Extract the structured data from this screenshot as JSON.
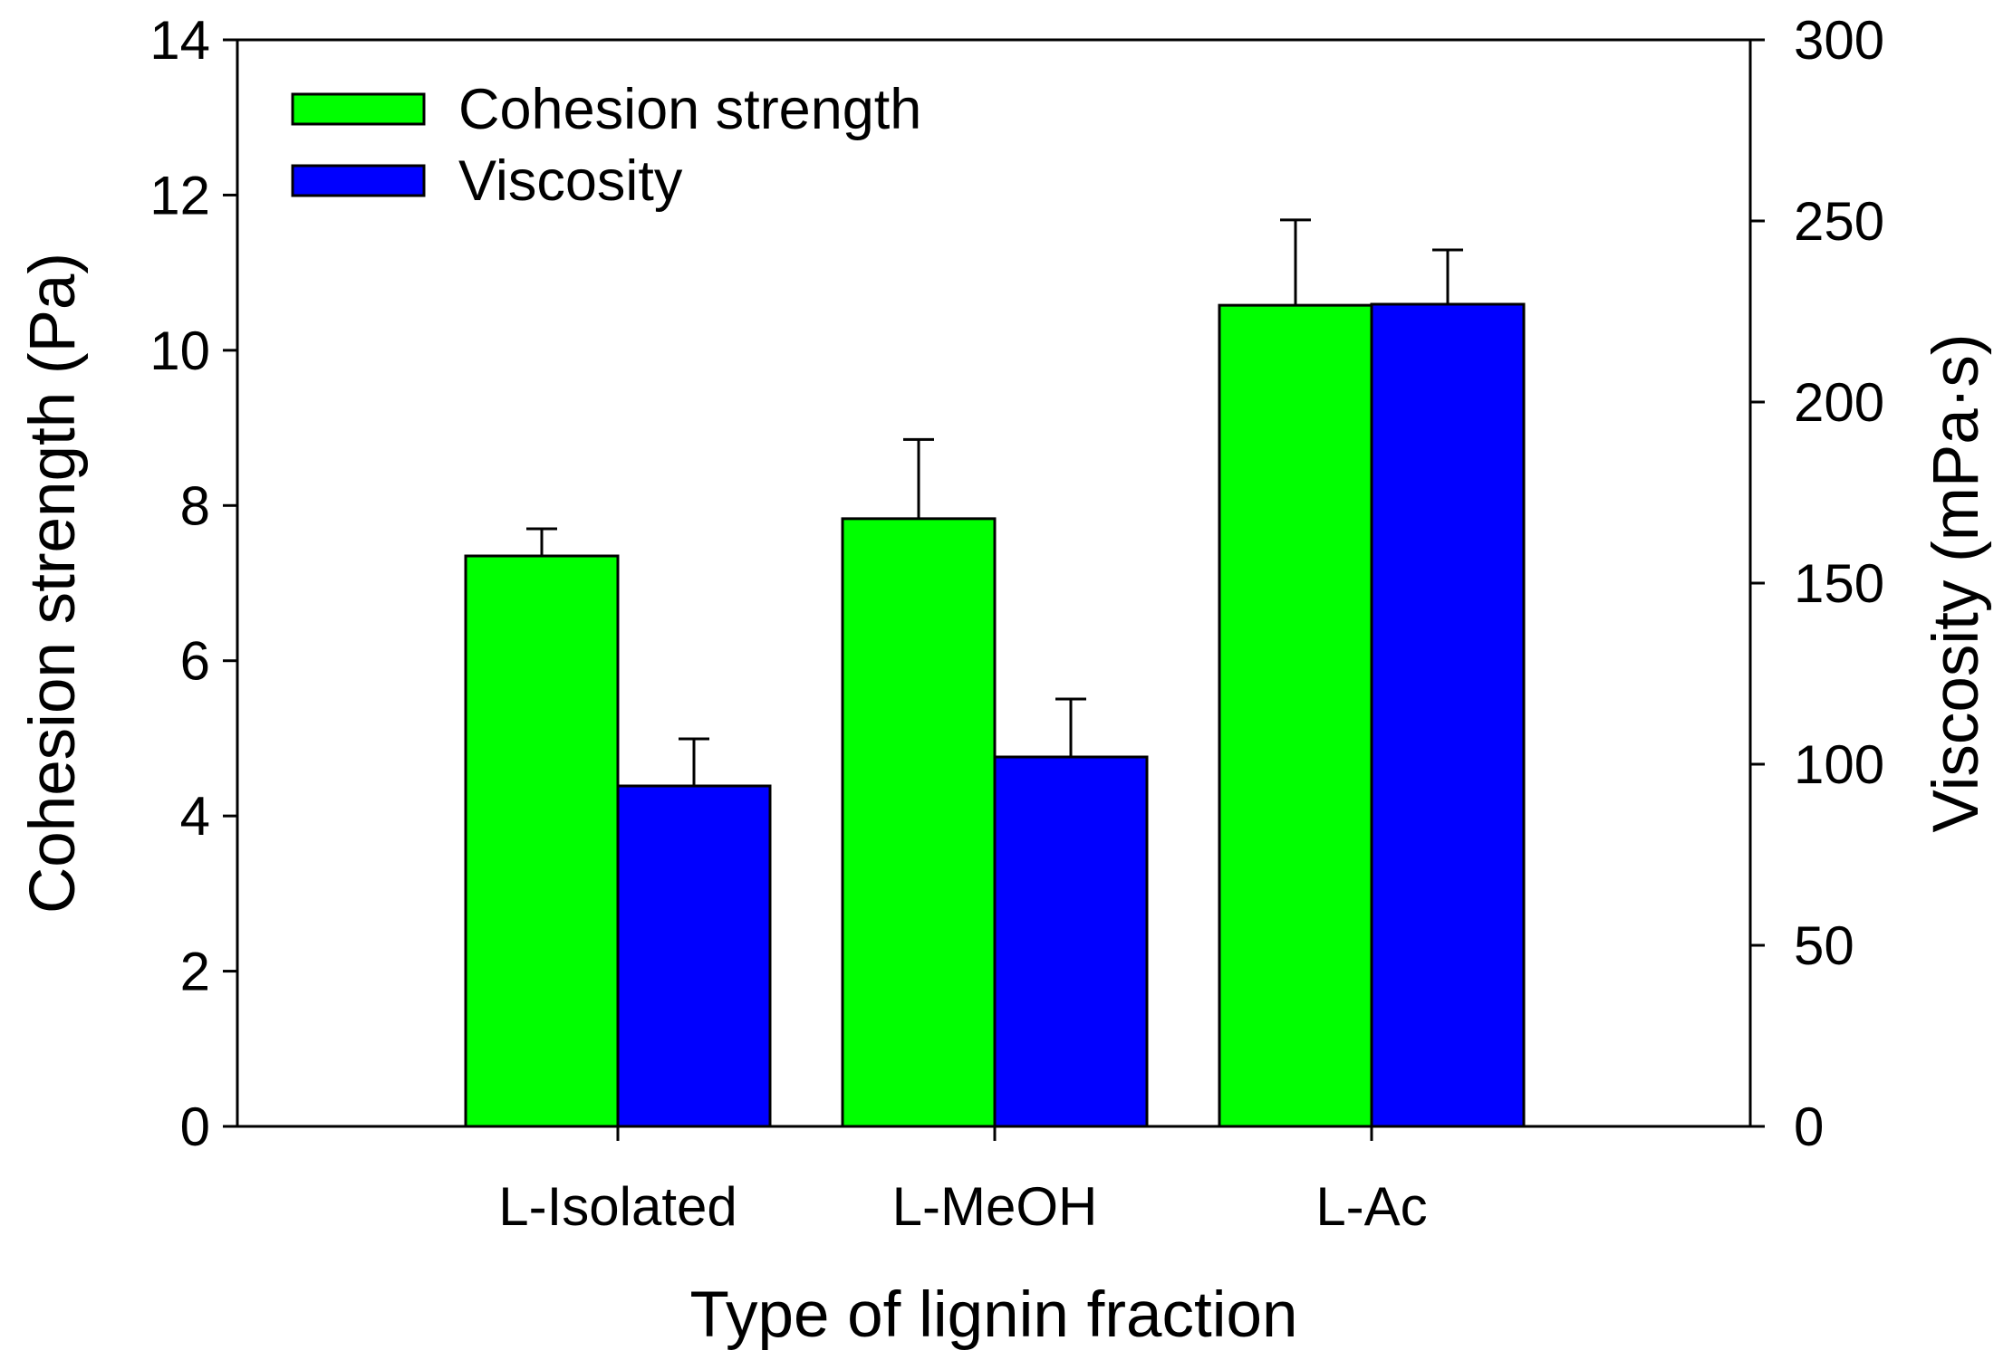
{
  "chart_data": {
    "type": "bar",
    "title": "",
    "xlabel": "Type of lignin fraction",
    "ylabel": "Cohesion strength (Pa)",
    "y2label": "Viscosity (mPa·s)",
    "categories": [
      "L-Isolated",
      "L-MeOH",
      "L-Ac"
    ],
    "ylim": [
      0,
      14
    ],
    "y2lim": [
      0,
      300
    ],
    "yticks": [
      0,
      2,
      4,
      6,
      8,
      10,
      12,
      14
    ],
    "y2ticks": [
      0,
      50,
      100,
      150,
      200,
      250,
      300
    ],
    "legend_position": "top-left",
    "grid": false,
    "series": [
      {
        "name": "Cohesion strength",
        "axis": "left",
        "color": "#00ff00",
        "values": [
          7.35,
          7.83,
          10.58
        ],
        "errors": [
          0.35,
          1.02,
          1.1
        ]
      },
      {
        "name": "Viscosity",
        "axis": "right",
        "color": "#0000ff",
        "values": [
          94,
          102,
          227
        ],
        "errors": [
          13,
          16,
          15
        ]
      }
    ]
  }
}
